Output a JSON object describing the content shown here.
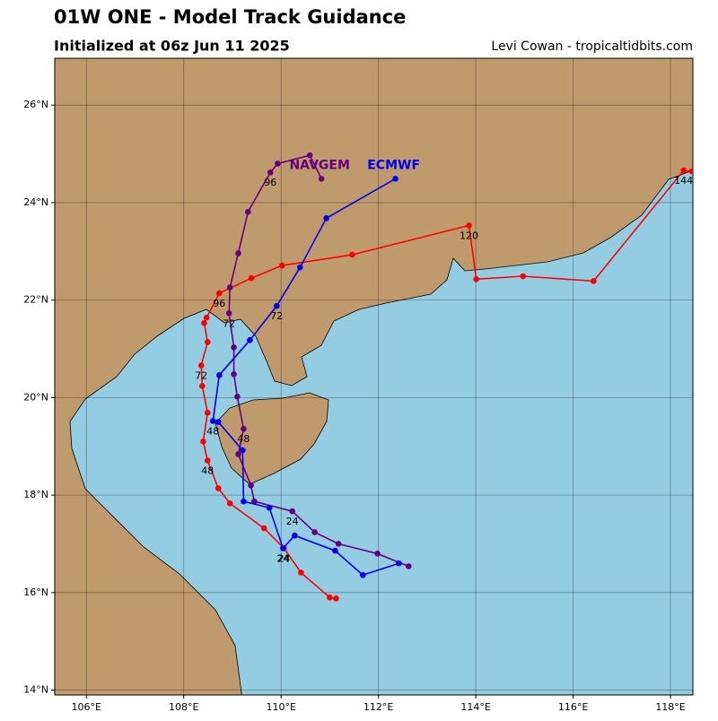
{
  "chart_data": {
    "type": "track",
    "title": "01W ONE - Model Track Guidance",
    "subtitle": "Initialized at 06z Jun 11 2025",
    "credit": "Levi Cowan - tropicaltidbits.com",
    "xlim": [
      105.35,
      118.46
    ],
    "ylim": [
      13.9,
      26.96
    ],
    "xticks": [
      {
        "value": 106,
        "label": "106°E"
      },
      {
        "value": 108,
        "label": "108°E"
      },
      {
        "value": 110,
        "label": "110°E"
      },
      {
        "value": 112,
        "label": "112°E"
      },
      {
        "value": 114,
        "label": "114°E"
      },
      {
        "value": 116,
        "label": "116°E"
      },
      {
        "value": 118,
        "label": "118°E"
      }
    ],
    "yticks": [
      {
        "value": 14,
        "label": "14°N"
      },
      {
        "value": 16,
        "label": "16°N"
      },
      {
        "value": 18,
        "label": "18°N"
      },
      {
        "value": 20,
        "label": "20°N"
      },
      {
        "value": 22,
        "label": "22°N"
      },
      {
        "value": 24,
        "label": "24°N"
      },
      {
        "value": 26,
        "label": "26°N"
      }
    ],
    "grid": true,
    "series": [
      {
        "color": "#ff0000",
        "x": [
          111.13,
          111.0,
          110.41,
          110.06,
          109.65,
          108.95,
          108.71,
          108.49,
          108.4,
          108.49,
          108.38,
          108.36,
          108.49,
          108.42,
          108.47,
          108.73,
          109.39,
          110.02,
          111.46,
          113.86,
          114.01,
          114.97,
          116.42,
          118.27,
          118.44
        ],
        "values": [
          15.88,
          15.9,
          16.41,
          16.91,
          17.32,
          17.83,
          18.14,
          18.71,
          19.1,
          19.69,
          20.24,
          20.66,
          21.14,
          21.53,
          21.64,
          22.14,
          22.45,
          22.71,
          22.93,
          23.53,
          22.43,
          22.49,
          22.39,
          24.66,
          24.64
        ],
        "point_labels": [
          null,
          null,
          null,
          "24",
          null,
          null,
          null,
          "48",
          null,
          null,
          null,
          "72",
          null,
          null,
          null,
          "96",
          null,
          null,
          null,
          "120",
          null,
          null,
          null,
          "144",
          null
        ]
      },
      {
        "name": "NAVGEM",
        "color": "#660080",
        "x": [
          112.62,
          111.98,
          111.18,
          110.69,
          110.23,
          109.45,
          109.38,
          109.12,
          109.23,
          109.1,
          109.03,
          109.03,
          108.93,
          108.95,
          109.12,
          109.32,
          109.78,
          109.93,
          110.59,
          110.83
        ],
        "values": [
          16.54,
          16.8,
          17.0,
          17.24,
          17.67,
          17.87,
          18.2,
          18.84,
          19.36,
          20.02,
          20.48,
          21.03,
          21.73,
          22.26,
          22.96,
          23.81,
          24.62,
          24.8,
          24.97,
          24.49
        ],
        "point_labels": [
          null,
          null,
          null,
          null,
          "24",
          null,
          null,
          null,
          "48",
          null,
          null,
          null,
          "72",
          null,
          null,
          null,
          "96",
          null,
          null,
          null
        ]
      },
      {
        "name": "ECMWF",
        "color": "#0000ee",
        "x": [
          112.42,
          111.68,
          111.11,
          110.28,
          110.04,
          109.76,
          109.23,
          109.21,
          108.71,
          108.6,
          108.73,
          109.36,
          109.91,
          110.39,
          110.93,
          112.35
        ],
        "values": [
          16.6,
          16.36,
          16.86,
          17.17,
          16.91,
          17.74,
          17.87,
          18.92,
          19.5,
          19.52,
          20.46,
          21.18,
          21.88,
          22.67,
          23.68,
          24.49
        ],
        "point_labels": [
          null,
          null,
          null,
          null,
          "24",
          null,
          null,
          null,
          null,
          "48",
          null,
          null,
          "72",
          null,
          null,
          null
        ]
      }
    ]
  }
}
